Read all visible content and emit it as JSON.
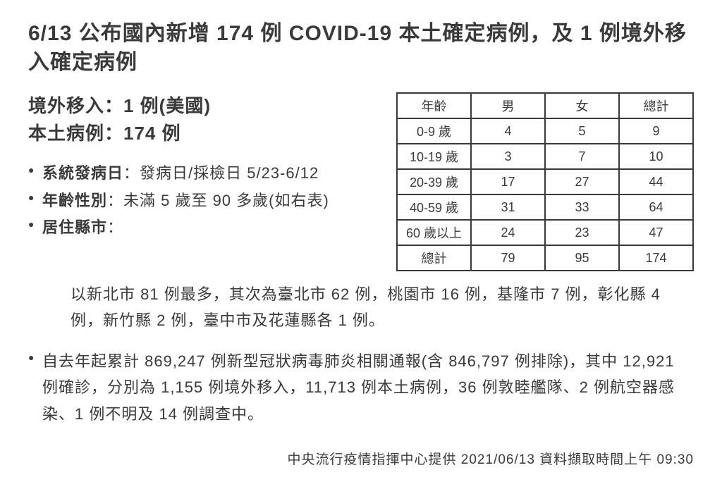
{
  "title": "6/13 公布國內新增 174 例 COVID-19 本土確定病例，及 1 例境外移入確定病例",
  "summary": {
    "imported": "境外移入：1 例(美國)",
    "local": "本土病例：174 例"
  },
  "bullets": {
    "onset_label": "系統發病日",
    "onset_value": "：發病日/採檢日 5/23-6/12",
    "age_label": "年齡性別",
    "age_value": "：未滿 5 歲至 90 多歲(如右表)",
    "county_label": "居住縣市",
    "county_value": "："
  },
  "age_table": {
    "headers": [
      "年齡",
      "男",
      "女",
      "總計"
    ],
    "rows": [
      [
        "0-9 歲",
        "4",
        "5",
        "9"
      ],
      [
        "10-19 歲",
        "3",
        "7",
        "10"
      ],
      [
        "20-39 歲",
        "17",
        "27",
        "44"
      ],
      [
        "40-59 歲",
        "31",
        "33",
        "64"
      ],
      [
        "60 歲以上",
        "24",
        "23",
        "47"
      ],
      [
        "總計",
        "79",
        "95",
        "174"
      ]
    ]
  },
  "county_text": "以新北市 81 例最多，其次為臺北市 62 例，桃園市 16 例，基隆市 7 例，彰化縣 4 例，新竹縣 2 例，臺中市及花蓮縣各 1 例。",
  "cumulative_text": "自去年起累計 869,247 例新型冠狀病毒肺炎相關通報(含 846,797 例排除)，其中 12,921 例確診，分別為 1,155 例境外移入，11,713 例本土病例，36 例敦睦艦隊、2 例航空器感染、1 例不明及 14 例調查中。",
  "footer": "中央流行疫情指揮中心提供  2021/06/13  資料擷取時間上午 09:30",
  "colors": {
    "text": "#3a3a3a",
    "bg": "#ffffff",
    "border": "#3a3a3a"
  }
}
